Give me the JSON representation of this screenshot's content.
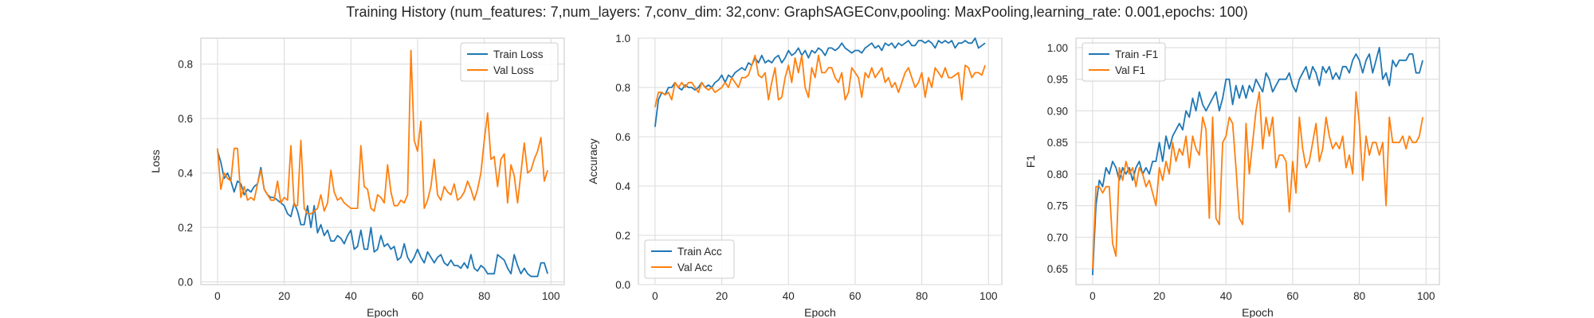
{
  "suptitle": "Training History (num_features: 7,num_layers: 7,conv_dim: 32,conv: GraphSAGEConv,pooling: MaxPooling,learning_rate: 0.001,epochs: 100)",
  "colors": {
    "blue": "#1f77b4",
    "orange": "#ff7f0e"
  },
  "chart_data": [
    {
      "type": "line",
      "xlabel": "Epoch",
      "ylabel": "Loss",
      "xlim": [
        -5,
        104
      ],
      "ylim": [
        -0.01,
        0.895
      ],
      "xticks": [
        0,
        20,
        40,
        60,
        80,
        100
      ],
      "xtick_labels": [
        "0",
        "20",
        "40",
        "60",
        "80",
        "100"
      ],
      "yticks": [
        0.0,
        0.2,
        0.4,
        0.6,
        0.8
      ],
      "ytick_labels": [
        "0.0",
        "0.2",
        "0.4",
        "0.6",
        "0.8"
      ],
      "legend_position": "top-right",
      "x": [
        0,
        1,
        2,
        3,
        4,
        5,
        6,
        7,
        8,
        9,
        10,
        11,
        12,
        13,
        14,
        15,
        16,
        17,
        18,
        19,
        20,
        21,
        22,
        23,
        24,
        25,
        26,
        27,
        28,
        29,
        30,
        31,
        32,
        33,
        34,
        35,
        36,
        37,
        38,
        39,
        40,
        41,
        42,
        43,
        44,
        45,
        46,
        47,
        48,
        49,
        50,
        51,
        52,
        53,
        54,
        55,
        56,
        57,
        58,
        59,
        60,
        61,
        62,
        63,
        64,
        65,
        66,
        67,
        68,
        69,
        70,
        71,
        72,
        73,
        74,
        75,
        76,
        77,
        78,
        79,
        80,
        81,
        82,
        83,
        84,
        85,
        86,
        87,
        88,
        89,
        90,
        91,
        92,
        93,
        94,
        95,
        96,
        97,
        98,
        99
      ],
      "series": [
        {
          "name": "Train Loss",
          "color": "#1f77b4",
          "values": [
            0.48,
            0.44,
            0.38,
            0.4,
            0.37,
            0.33,
            0.37,
            0.36,
            0.32,
            0.34,
            0.33,
            0.35,
            0.36,
            0.42,
            0.34,
            0.32,
            0.31,
            0.31,
            0.3,
            0.29,
            0.28,
            0.25,
            0.24,
            0.29,
            0.26,
            0.21,
            0.21,
            0.28,
            0.2,
            0.28,
            0.18,
            0.21,
            0.17,
            0.19,
            0.15,
            0.15,
            0.17,
            0.16,
            0.14,
            0.17,
            0.19,
            0.12,
            0.13,
            0.19,
            0.12,
            0.12,
            0.2,
            0.11,
            0.12,
            0.17,
            0.13,
            0.14,
            0.12,
            0.13,
            0.08,
            0.09,
            0.14,
            0.09,
            0.07,
            0.09,
            0.12,
            0.09,
            0.07,
            0.11,
            0.09,
            0.07,
            0.09,
            0.1,
            0.07,
            0.06,
            0.08,
            0.06,
            0.06,
            0.05,
            0.07,
            0.05,
            0.1,
            0.05,
            0.04,
            0.06,
            0.05,
            0.03,
            0.03,
            0.03,
            0.1,
            0.09,
            0.08,
            0.05,
            0.03,
            0.1,
            0.06,
            0.03,
            0.05,
            0.03,
            0.02,
            0.02,
            0.02,
            0.07,
            0.07,
            0.03
          ]
        },
        {
          "name": "Val Loss",
          "color": "#ff7f0e",
          "values": [
            0.49,
            0.34,
            0.4,
            0.38,
            0.37,
            0.49,
            0.49,
            0.31,
            0.35,
            0.3,
            0.31,
            0.3,
            0.36,
            0.41,
            0.34,
            0.32,
            0.3,
            0.3,
            0.37,
            0.29,
            0.31,
            0.3,
            0.5,
            0.28,
            0.28,
            0.52,
            0.27,
            0.25,
            0.25,
            0.26,
            0.27,
            0.32,
            0.26,
            0.29,
            0.41,
            0.33,
            0.3,
            0.31,
            0.29,
            0.28,
            0.27,
            0.27,
            0.27,
            0.5,
            0.35,
            0.34,
            0.27,
            0.26,
            0.32,
            0.31,
            0.29,
            0.43,
            0.33,
            0.28,
            0.28,
            0.3,
            0.29,
            0.32,
            0.85,
            0.52,
            0.48,
            0.59,
            0.27,
            0.3,
            0.35,
            0.45,
            0.32,
            0.3,
            0.35,
            0.33,
            0.32,
            0.36,
            0.3,
            0.31,
            0.33,
            0.37,
            0.34,
            0.3,
            0.34,
            0.4,
            0.52,
            0.62,
            0.45,
            0.46,
            0.35,
            0.45,
            0.47,
            0.29,
            0.43,
            0.39,
            0.29,
            0.4,
            0.51,
            0.4,
            0.41,
            0.45,
            0.48,
            0.53,
            0.37,
            0.41
          ]
        }
      ]
    },
    {
      "type": "line",
      "xlabel": "Epoch",
      "ylabel": "Accuracy",
      "xlim": [
        -5,
        104
      ],
      "ylim": [
        0.0,
        1.0
      ],
      "xticks": [
        0,
        20,
        40,
        60,
        80,
        100
      ],
      "xtick_labels": [
        "0",
        "20",
        "40",
        "60",
        "80",
        "100"
      ],
      "yticks": [
        0.0,
        0.2,
        0.4,
        0.6,
        0.8,
        1.0
      ],
      "ytick_labels": [
        "0.0",
        "0.2",
        "0.4",
        "0.6",
        "0.8",
        "1.0"
      ],
      "legend_position": "bottom-left",
      "x": [
        0,
        1,
        2,
        3,
        4,
        5,
        6,
        7,
        8,
        9,
        10,
        11,
        12,
        13,
        14,
        15,
        16,
        17,
        18,
        19,
        20,
        21,
        22,
        23,
        24,
        25,
        26,
        27,
        28,
        29,
        30,
        31,
        32,
        33,
        34,
        35,
        36,
        37,
        38,
        39,
        40,
        41,
        42,
        43,
        44,
        45,
        46,
        47,
        48,
        49,
        50,
        51,
        52,
        53,
        54,
        55,
        56,
        57,
        58,
        59,
        60,
        61,
        62,
        63,
        64,
        65,
        66,
        67,
        68,
        69,
        70,
        71,
        72,
        73,
        74,
        75,
        76,
        77,
        78,
        79,
        80,
        81,
        82,
        83,
        84,
        85,
        86,
        87,
        88,
        89,
        90,
        91,
        92,
        93,
        94,
        95,
        96,
        97,
        98,
        99
      ],
      "series": [
        {
          "name": "Train Acc",
          "color": "#1f77b4",
          "values": [
            0.64,
            0.75,
            0.78,
            0.77,
            0.8,
            0.8,
            0.82,
            0.8,
            0.79,
            0.81,
            0.8,
            0.8,
            0.79,
            0.8,
            0.82,
            0.8,
            0.81,
            0.8,
            0.82,
            0.83,
            0.85,
            0.82,
            0.85,
            0.84,
            0.86,
            0.87,
            0.88,
            0.87,
            0.9,
            0.89,
            0.92,
            0.9,
            0.93,
            0.9,
            0.91,
            0.9,
            0.92,
            0.93,
            0.9,
            0.92,
            0.95,
            0.93,
            0.94,
            0.96,
            0.93,
            0.95,
            0.92,
            0.95,
            0.94,
            0.96,
            0.95,
            0.93,
            0.96,
            0.96,
            0.95,
            0.96,
            0.98,
            0.96,
            0.95,
            0.94,
            0.95,
            0.95,
            0.94,
            0.96,
            0.97,
            0.98,
            0.96,
            0.97,
            0.95,
            0.98,
            0.97,
            0.98,
            0.96,
            0.98,
            0.97,
            0.98,
            0.99,
            0.97,
            0.97,
            0.99,
            0.99,
            0.98,
            0.99,
            0.98,
            0.96,
            0.99,
            0.98,
            0.99,
            0.98,
            0.99,
            0.96,
            0.98,
            0.98,
            0.99,
            0.98,
            0.98,
            1.0,
            0.96,
            0.97,
            0.98
          ]
        },
        {
          "name": "Val Acc",
          "color": "#ff7f0e",
          "values": [
            0.72,
            0.78,
            0.78,
            0.77,
            0.78,
            0.75,
            0.82,
            0.8,
            0.82,
            0.8,
            0.82,
            0.82,
            0.8,
            0.78,
            0.82,
            0.8,
            0.79,
            0.8,
            0.78,
            0.79,
            0.8,
            0.82,
            0.8,
            0.84,
            0.82,
            0.8,
            0.84,
            0.84,
            0.85,
            0.89,
            0.93,
            0.85,
            0.84,
            0.86,
            0.75,
            0.82,
            0.88,
            0.75,
            0.76,
            0.84,
            0.89,
            0.82,
            0.92,
            0.86,
            0.93,
            0.8,
            0.76,
            0.88,
            0.84,
            0.93,
            0.86,
            0.86,
            0.88,
            0.88,
            0.84,
            0.82,
            0.86,
            0.75,
            0.78,
            0.88,
            0.86,
            0.84,
            0.76,
            0.86,
            0.84,
            0.88,
            0.84,
            0.86,
            0.88,
            0.82,
            0.84,
            0.8,
            0.82,
            0.78,
            0.82,
            0.86,
            0.88,
            0.84,
            0.8,
            0.82,
            0.86,
            0.76,
            0.84,
            0.8,
            0.88,
            0.86,
            0.84,
            0.88,
            0.84,
            0.84,
            0.85,
            0.86,
            0.75,
            0.89,
            0.88,
            0.84,
            0.86,
            0.86,
            0.85,
            0.89
          ]
        }
      ]
    },
    {
      "type": "line",
      "xlabel": "Epoch",
      "ylabel": "F1",
      "xlim": [
        -5,
        104
      ],
      "ylim": [
        0.625,
        1.015
      ],
      "xticks": [
        0,
        20,
        40,
        60,
        80,
        100
      ],
      "xtick_labels": [
        "0",
        "20",
        "40",
        "60",
        "80",
        "100"
      ],
      "yticks": [
        0.65,
        0.7,
        0.75,
        0.8,
        0.85,
        0.9,
        0.95,
        1.0
      ],
      "ytick_labels": [
        "0.65",
        "0.70",
        "0.75",
        "0.80",
        "0.85",
        "0.90",
        "0.95",
        "1.00"
      ],
      "legend_position": "top-left",
      "x": [
        0,
        1,
        2,
        3,
        4,
        5,
        6,
        7,
        8,
        9,
        10,
        11,
        12,
        13,
        14,
        15,
        16,
        17,
        18,
        19,
        20,
        21,
        22,
        23,
        24,
        25,
        26,
        27,
        28,
        29,
        30,
        31,
        32,
        33,
        34,
        35,
        36,
        37,
        38,
        39,
        40,
        41,
        42,
        43,
        44,
        45,
        46,
        47,
        48,
        49,
        50,
        51,
        52,
        53,
        54,
        55,
        56,
        57,
        58,
        59,
        60,
        61,
        62,
        63,
        64,
        65,
        66,
        67,
        68,
        69,
        70,
        71,
        72,
        73,
        74,
        75,
        76,
        77,
        78,
        79,
        80,
        81,
        82,
        83,
        84,
        85,
        86,
        87,
        88,
        89,
        90,
        91,
        92,
        93,
        94,
        95,
        96,
        97,
        98,
        99
      ],
      "series": [
        {
          "name": "Train -F1",
          "color": "#1f77b4",
          "values": [
            0.64,
            0.75,
            0.79,
            0.78,
            0.81,
            0.8,
            0.82,
            0.81,
            0.79,
            0.81,
            0.8,
            0.81,
            0.79,
            0.81,
            0.82,
            0.8,
            0.81,
            0.8,
            0.82,
            0.82,
            0.85,
            0.82,
            0.86,
            0.84,
            0.86,
            0.87,
            0.88,
            0.87,
            0.9,
            0.89,
            0.92,
            0.9,
            0.93,
            0.91,
            0.9,
            0.91,
            0.92,
            0.93,
            0.9,
            0.92,
            0.95,
            0.95,
            0.91,
            0.94,
            0.92,
            0.94,
            0.92,
            0.94,
            0.93,
            0.95,
            0.94,
            0.93,
            0.96,
            0.95,
            0.93,
            0.94,
            0.95,
            0.95,
            0.95,
            0.96,
            0.94,
            0.93,
            0.95,
            0.96,
            0.97,
            0.95,
            0.97,
            0.96,
            0.94,
            0.97,
            0.96,
            0.97,
            0.95,
            0.96,
            0.95,
            0.97,
            0.97,
            0.96,
            0.98,
            0.99,
            0.98,
            0.96,
            0.98,
            0.99,
            0.96,
            0.98,
            1.0,
            0.95,
            0.96,
            0.94,
            0.98,
            0.97,
            0.98,
            0.98,
            0.98,
            0.99,
            0.99,
            0.96,
            0.96,
            0.98
          ]
        },
        {
          "name": "Val F1",
          "color": "#ff7f0e",
          "values": [
            0.65,
            0.78,
            0.78,
            0.77,
            0.78,
            0.78,
            0.69,
            0.67,
            0.81,
            0.79,
            0.82,
            0.8,
            0.81,
            0.78,
            0.81,
            0.8,
            0.78,
            0.79,
            0.77,
            0.75,
            0.81,
            0.79,
            0.82,
            0.8,
            0.85,
            0.82,
            0.84,
            0.83,
            0.86,
            0.81,
            0.86,
            0.84,
            0.83,
            0.89,
            0.87,
            0.73,
            0.89,
            0.73,
            0.72,
            0.85,
            0.86,
            0.89,
            0.88,
            0.81,
            0.73,
            0.72,
            0.88,
            0.8,
            0.85,
            0.9,
            0.93,
            0.84,
            0.89,
            0.86,
            0.89,
            0.81,
            0.83,
            0.83,
            0.82,
            0.74,
            0.82,
            0.77,
            0.89,
            0.84,
            0.81,
            0.82,
            0.85,
            0.88,
            0.82,
            0.84,
            0.89,
            0.86,
            0.84,
            0.85,
            0.84,
            0.86,
            0.81,
            0.83,
            0.8,
            0.93,
            0.88,
            0.79,
            0.86,
            0.83,
            0.85,
            0.85,
            0.83,
            0.85,
            0.75,
            0.89,
            0.85,
            0.85,
            0.85,
            0.86,
            0.84,
            0.86,
            0.85,
            0.85,
            0.86,
            0.89
          ]
        }
      ]
    }
  ]
}
